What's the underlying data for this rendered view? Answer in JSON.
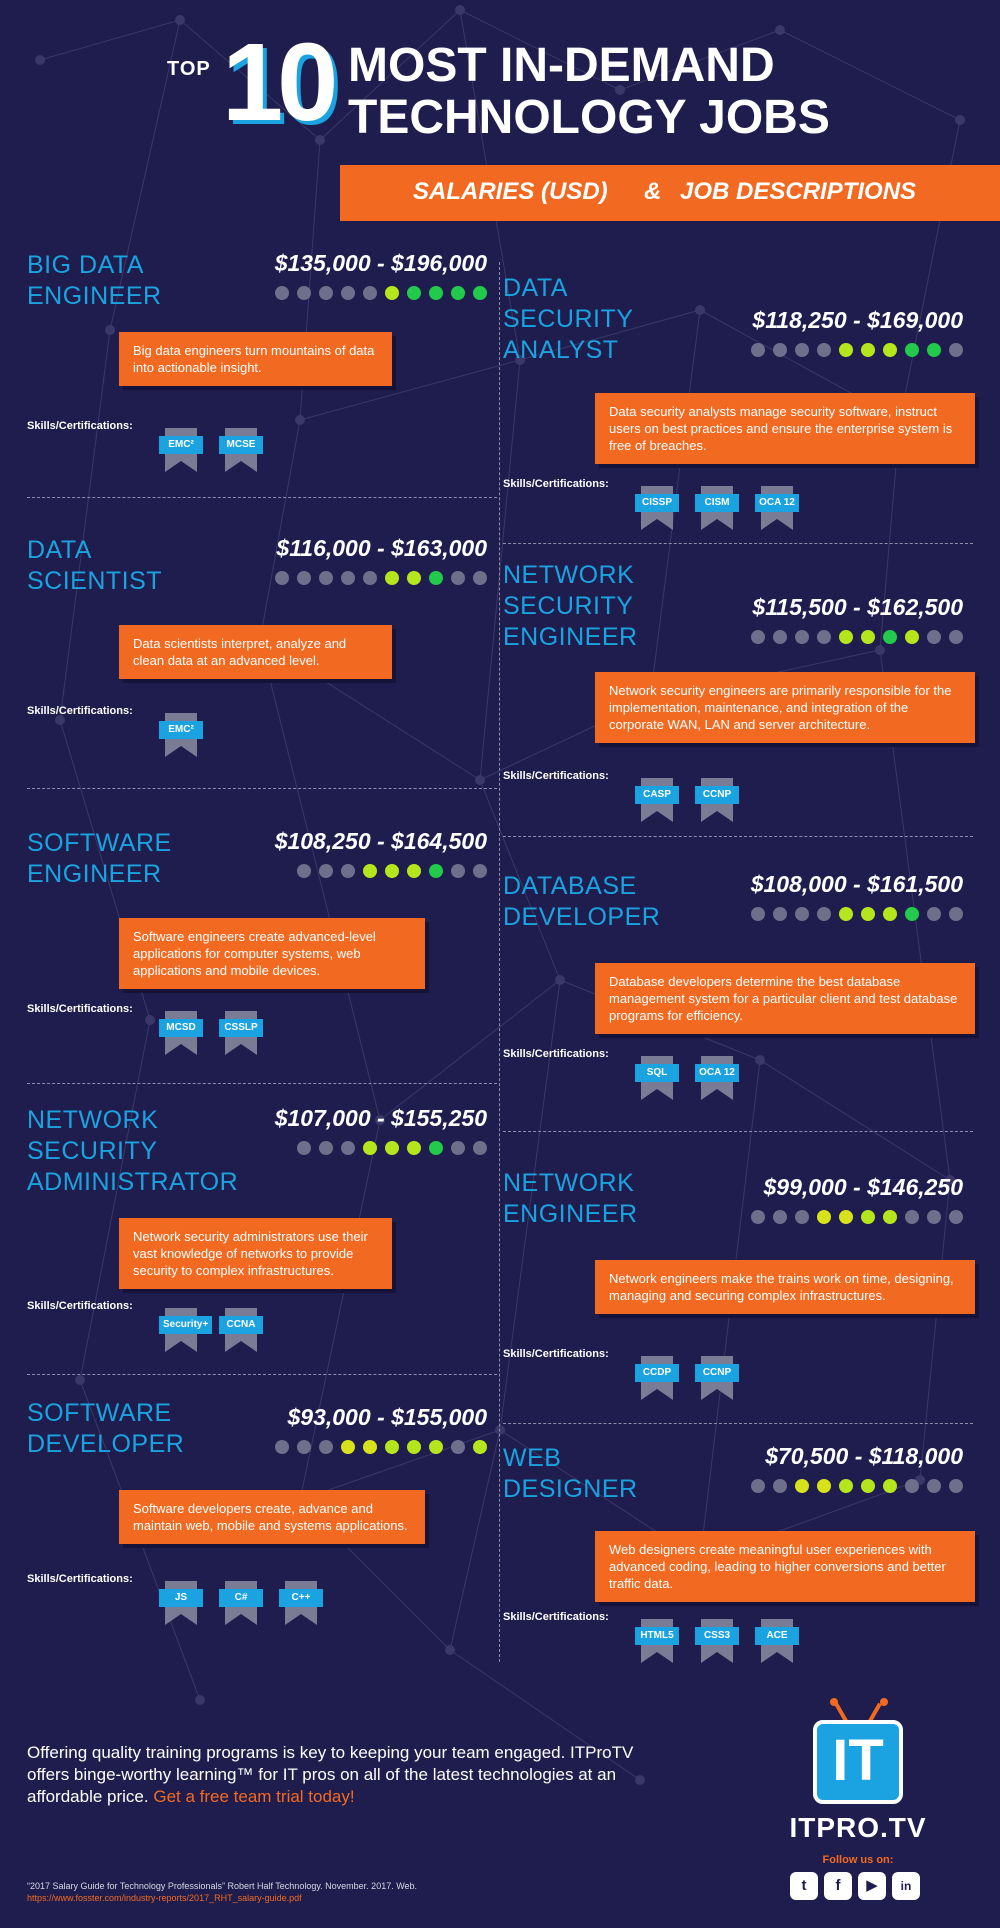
{
  "header": {
    "top": "TOP",
    "number": "10",
    "line1": "MOST IN-DEMAND",
    "line2": "TECHNOLOGY JOBS",
    "banner_left": "SALARIES (USD)",
    "banner_amp": "&",
    "banner_right": "JOB DESCRIPTIONS"
  },
  "skills_label": "Skills/Certifications:",
  "jobs": [
    {
      "title": "BIG DATA\nENGINEER",
      "salary": "$135,000 - $196,000",
      "dots": [
        "g",
        "g",
        "g",
        "g",
        "g",
        "l",
        "n",
        "n",
        "n",
        "n"
      ],
      "description": "Big data engineers turn mountains of data into actionable insight.",
      "certs": [
        "EMC²",
        "MCSE"
      ]
    },
    {
      "title": "DATA\nSECURITY\nANALYST",
      "salary": "$118,250 - $169,000",
      "dots": [
        "g",
        "g",
        "g",
        "g",
        "l",
        "l",
        "l",
        "n",
        "n",
        "g"
      ],
      "description": "Data security analysts manage security software, instruct users on best practices and ensure the enterprise system is free of breaches.",
      "certs": [
        "CISSP",
        "CISM",
        "OCA 12"
      ]
    },
    {
      "title": "DATA\nSCIENTIST",
      "salary": "$116,000 - $163,000",
      "dots": [
        "g",
        "g",
        "g",
        "g",
        "g",
        "l",
        "l",
        "n",
        "g",
        "g"
      ],
      "description": "Data scientists interpret, analyze and clean data at an advanced level.",
      "certs": [
        "EMC²"
      ]
    },
    {
      "title": "NETWORK\nSECURITY\nENGINEER",
      "salary": "$115,500 - $162,500",
      "dots": [
        "g",
        "g",
        "g",
        "g",
        "l",
        "l",
        "n",
        "l",
        "g",
        "g"
      ],
      "description": "Network security engineers are primarily responsible for the implementation, maintenance, and integration of the corporate WAN, LAN and server architecture.",
      "certs": [
        "CASP",
        "CCNP"
      ]
    },
    {
      "title": "SOFTWARE\nENGINEER",
      "salary": "$108,250 - $164,500",
      "dots": [
        "g",
        "g",
        "g",
        "l",
        "l",
        "l",
        "n",
        "g",
        "g"
      ],
      "description": "Software engineers create advanced-level applications for computer systems, web applications and mobile devices.",
      "certs": [
        "MCSD",
        "CSSLP"
      ]
    },
    {
      "title": "DATABASE\nDEVELOPER",
      "salary": "$108,000 - $161,500",
      "dots": [
        "g",
        "g",
        "g",
        "g",
        "l",
        "l",
        "l",
        "n",
        "g",
        "g"
      ],
      "description": "Database developers determine the best database management system for a particular client and test database programs for efficiency.",
      "certs": [
        "SQL",
        "OCA 12"
      ]
    },
    {
      "title": "NETWORK\nSECURITY\nADMINISTRATOR",
      "salary": "$107,000 - $155,250",
      "dots": [
        "g",
        "g",
        "g",
        "l",
        "l",
        "l",
        "n",
        "g",
        "g"
      ],
      "description": "Network security administrators use their vast knowledge of networks to provide security to complex infrastructures.",
      "certs": [
        "Security+",
        "CCNA"
      ]
    },
    {
      "title": "NETWORK\nENGINEER",
      "salary": "$99,000 - $146,250",
      "dots": [
        "g",
        "g",
        "g",
        "y",
        "y",
        "l",
        "l",
        "g",
        "g",
        "g"
      ],
      "description": "Network engineers make the trains work on time, designing, managing and securing complex infrastructures.",
      "certs": [
        "CCDP",
        "CCNP"
      ]
    },
    {
      "title": "SOFTWARE\nDEVELOPER",
      "salary": "$93,000 - $155,000",
      "dots": [
        "g",
        "g",
        "g",
        "y",
        "y",
        "l",
        "l",
        "l",
        "g",
        "l"
      ],
      "description": "Software developers create, advance and maintain web, mobile and systems applications.",
      "certs": [
        "JS",
        "C#",
        "C++"
      ]
    },
    {
      "title": "WEB\nDESIGNER",
      "salary": "$70,500 - $118,000",
      "dots": [
        "g",
        "g",
        "y",
        "y",
        "l",
        "l",
        "l",
        "g",
        "g",
        "g"
      ],
      "description": "Web designers create meaningful user experiences with advanced coding, leading to higher conversions and better traffic data.",
      "certs": [
        "HTML5",
        "CSS3",
        "ACE"
      ]
    }
  ],
  "colors": {
    "background": "#1f1d4d",
    "accent": "#f26a21",
    "title": "#1aa3e0",
    "dot_gray": "#6e6f8a",
    "dot_lime": "#b5e61d",
    "dot_green": "#22c94a",
    "dot_yellow": "#d8e21a"
  },
  "footer": {
    "text": "Offering quality training programs is key to keeping your team engaged. ITProTV offers binge-worthy learning™ for IT pros on all of the latest technologies at an affordable price.",
    "cta": "Get a free team trial today!",
    "citation": "“2017 Salary Guide for Technology Professionals” Robert Half Technology. November. 2017. Web.",
    "url": "https://www.fosster.com/industry-reports/2017_RHT_salary-guide.pdf"
  },
  "logo": {
    "mark": "IT",
    "name": "ITPRO.TV",
    "follow": "Follow us on:"
  },
  "social": [
    {
      "icon": "twitter-icon",
      "glyph": "t"
    },
    {
      "icon": "facebook-icon",
      "glyph": "f"
    },
    {
      "icon": "youtube-icon",
      "glyph": "▶"
    },
    {
      "icon": "linkedin-icon",
      "glyph": "in"
    }
  ]
}
